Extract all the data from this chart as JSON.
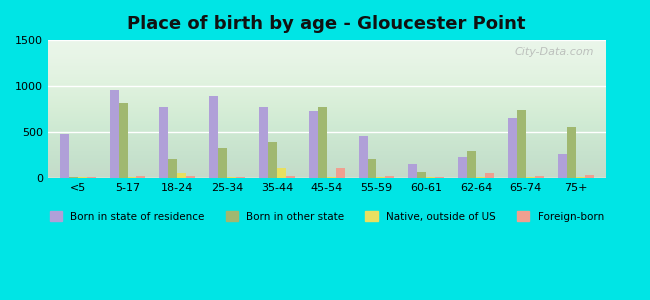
{
  "title": "Place of birth by age - Gloucester Point",
  "categories": [
    "<5",
    "5-17",
    "18-24",
    "25-34",
    "35-44",
    "45-54",
    "55-59",
    "60-61",
    "62-64",
    "65-74",
    "75+"
  ],
  "series": {
    "Born in state of residence": [
      480,
      960,
      770,
      890,
      770,
      730,
      460,
      155,
      230,
      650,
      265
    ],
    "Born in other state": [
      20,
      820,
      210,
      335,
      400,
      780,
      215,
      70,
      295,
      740,
      555
    ],
    "Native, outside of US": [
      15,
      20,
      55,
      20,
      115,
      20,
      20,
      20,
      20,
      20,
      20
    ],
    "Foreign-born": [
      20,
      25,
      25,
      20,
      30,
      110,
      30,
      20,
      55,
      30,
      35
    ]
  },
  "colors": {
    "Born in state of residence": "#b0a0d8",
    "Born in other state": "#a0b870",
    "Native, outside of US": "#e8e060",
    "Foreign-born": "#f0a090"
  },
  "ylim": [
    0,
    1500
  ],
  "yticks": [
    0,
    500,
    1000,
    1500
  ],
  "background_top": "#e8f5e8",
  "background_bottom": "#f5fff0",
  "outer_bg": "#00e5e5",
  "bar_width": 0.18,
  "watermark": "City-Data.com"
}
